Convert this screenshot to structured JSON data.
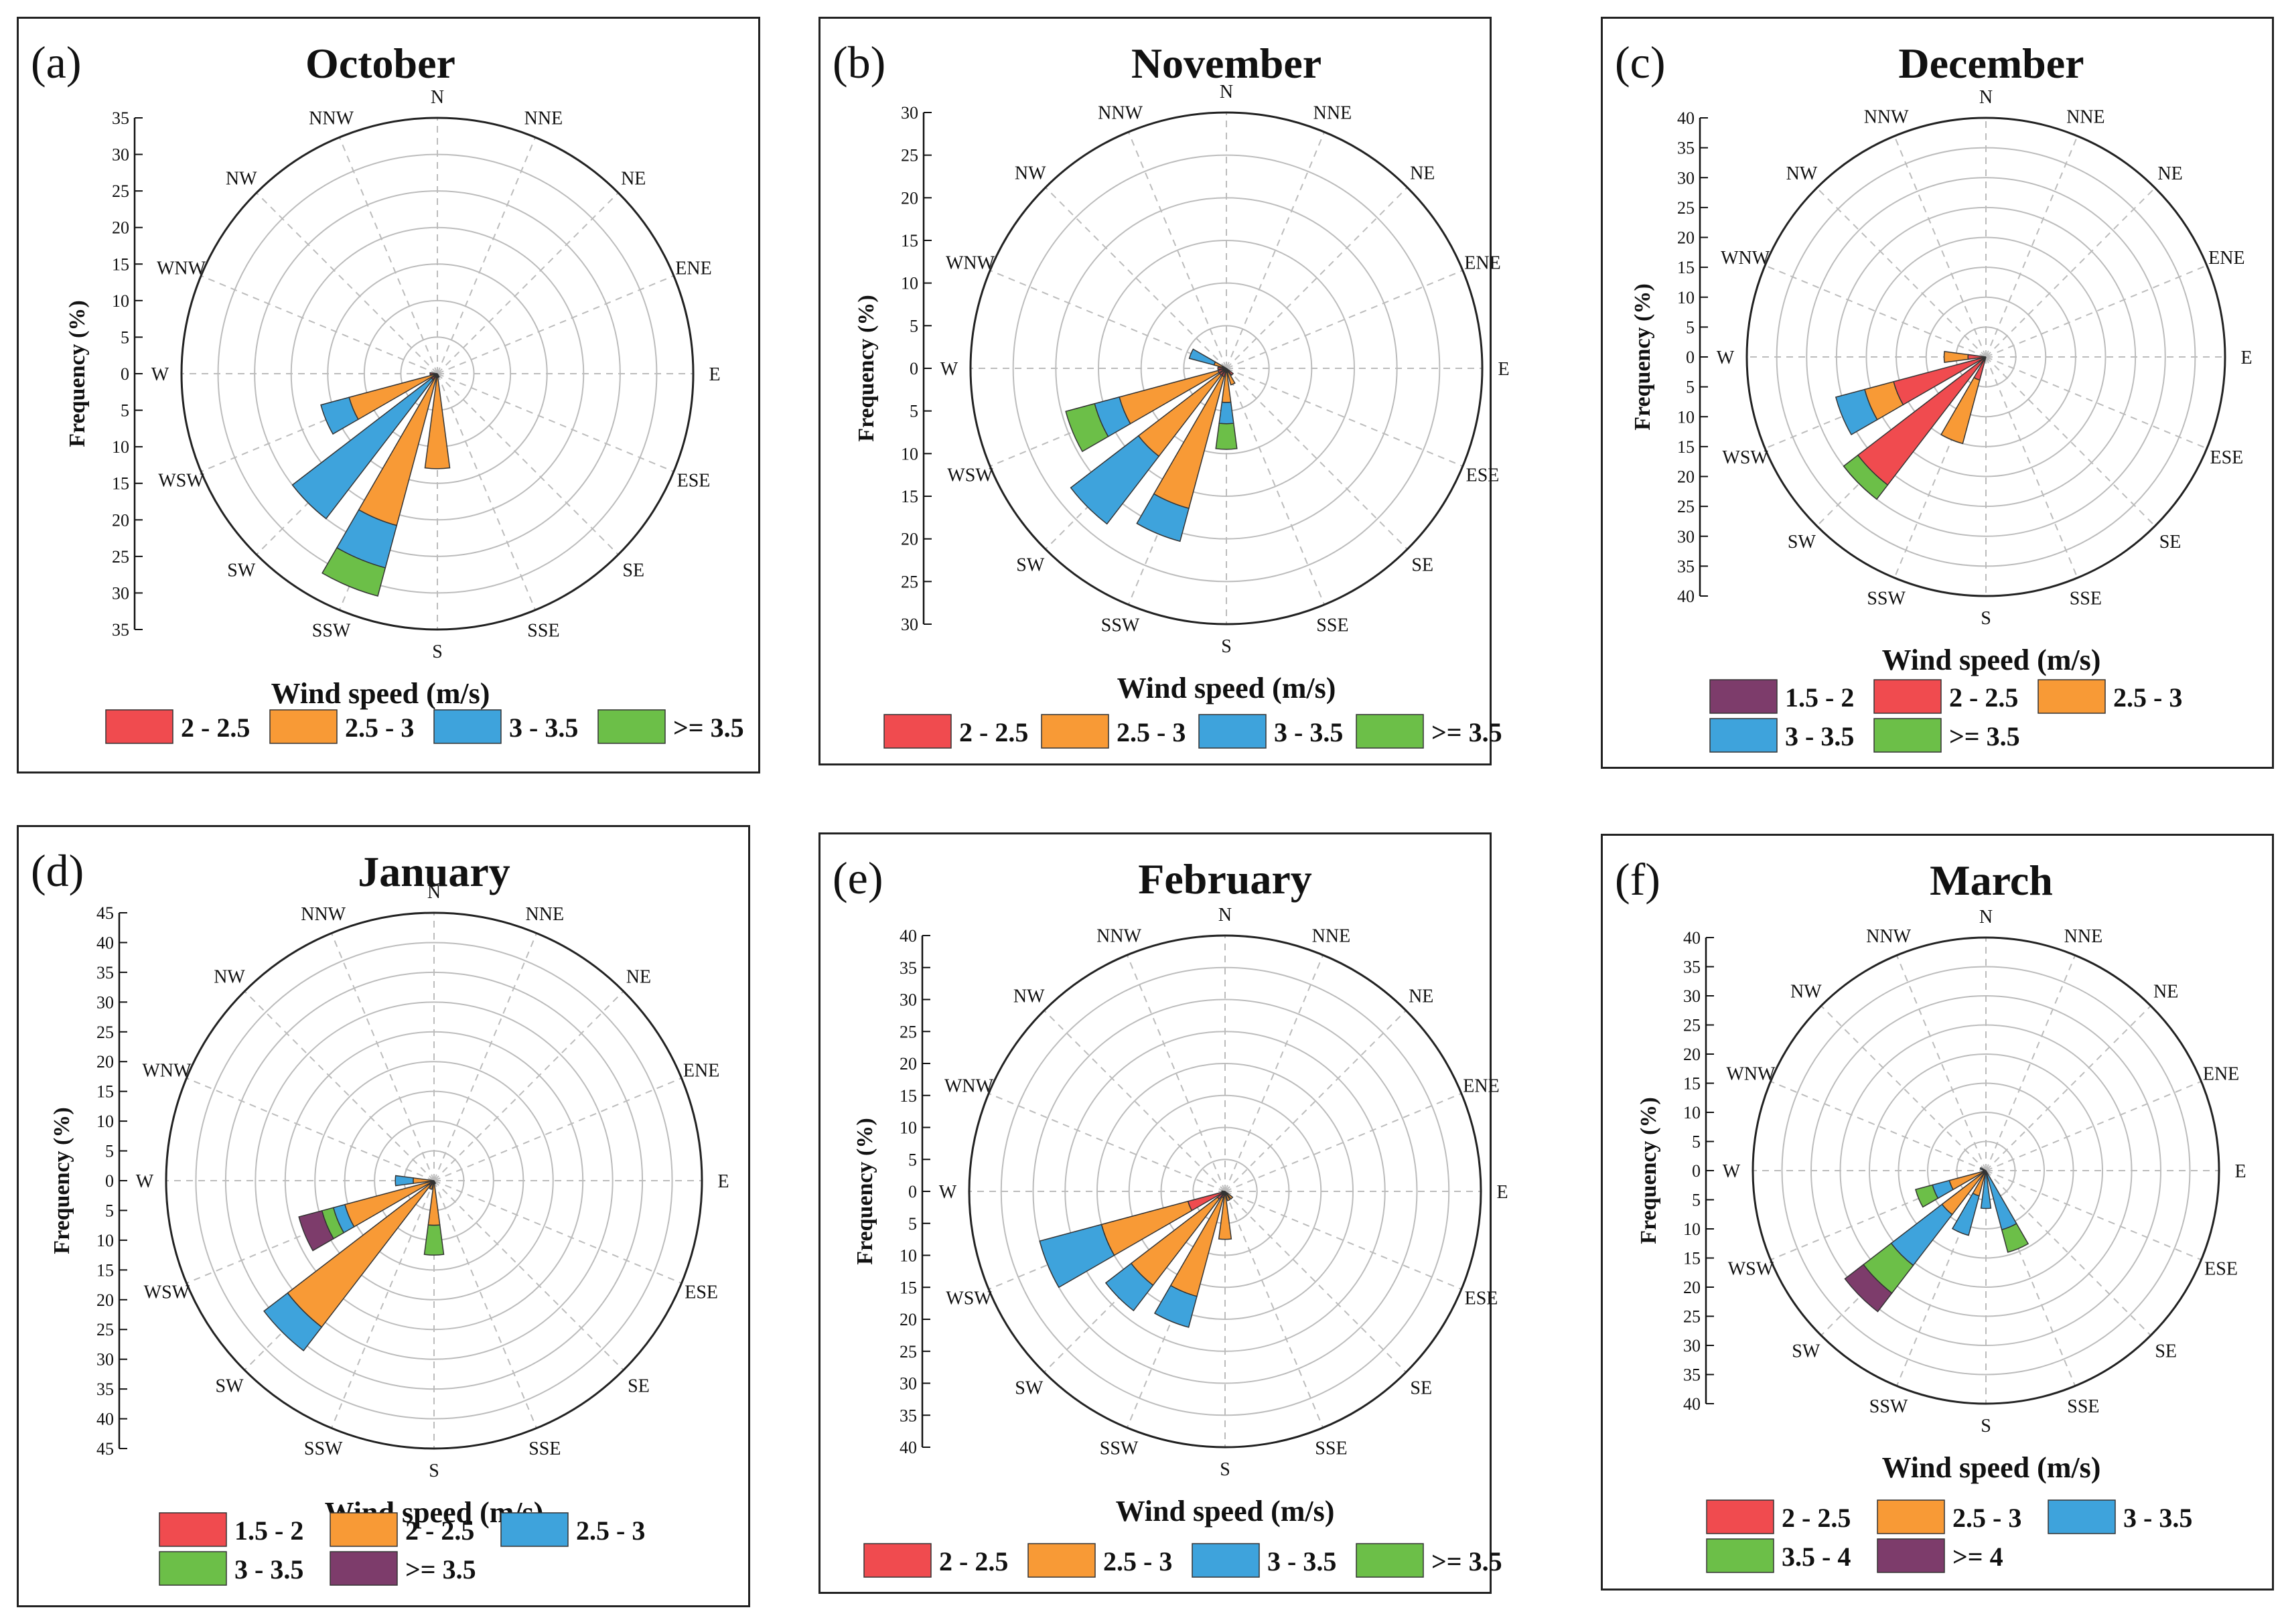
{
  "figure": {
    "direction_order": [
      "N",
      "NNE",
      "NE",
      "ENE",
      "E",
      "ESE",
      "SE",
      "SSE",
      "S",
      "SSW",
      "SW",
      "WSW",
      "W",
      "WNW",
      "NW",
      "NNW"
    ],
    "colors": {
      "red": "#f04b4f",
      "orange": "#f89a36",
      "blue": "#3ea3dc",
      "green": "#6cbf48",
      "purple": "#7d3c6b",
      "grid": "#bcbcbc",
      "frame": "#222222"
    }
  },
  "chart_data": [
    {
      "panel": "(a)",
      "title": "October",
      "type": "wind-rose",
      "xlabel": "Wind speed (m/s)",
      "ylabel": "Frequency (%)",
      "rmax": 35,
      "ticks": [
        0,
        5,
        10,
        15,
        20,
        25,
        30,
        35
      ],
      "directions": [
        "N",
        "NNE",
        "NE",
        "ENE",
        "E",
        "ESE",
        "SE",
        "SSE",
        "S",
        "SSW",
        "SW",
        "WSW",
        "W",
        "WNW",
        "NW",
        "NNW"
      ],
      "legend": [
        {
          "label": "2 - 2.5",
          "color": "#f04b4f"
        },
        {
          "label": "2.5 - 3",
          "color": "#f89a36"
        },
        {
          "label": "3 - 3.5",
          "color": "#3ea3dc"
        },
        {
          "label": ">= 3.5",
          "color": "#6cbf48"
        }
      ],
      "sectors": [
        {
          "dir": "S",
          "values": [
            0.5,
            12.5,
            0,
            0
          ]
        },
        {
          "dir": "SSW",
          "values": [
            0.5,
            21,
            6,
            4
          ]
        },
        {
          "dir": "SW",
          "values": [
            1,
            0,
            24,
            0
          ]
        },
        {
          "dir": "WSW",
          "values": [
            0.5,
            12,
            4,
            0
          ]
        },
        {
          "dir": "SSE",
          "values": [
            0.5,
            0,
            0,
            0
          ]
        },
        {
          "dir": "W",
          "values": [
            1,
            0,
            0,
            0
          ]
        }
      ]
    },
    {
      "panel": "(b)",
      "title": "November",
      "type": "wind-rose",
      "xlabel": "Wind speed (m/s)",
      "ylabel": "Frequency (%)",
      "rmax": 30,
      "ticks": [
        0,
        5,
        10,
        15,
        20,
        25,
        30
      ],
      "directions": [
        "N",
        "NNE",
        "NE",
        "ENE",
        "E",
        "ESE",
        "SE",
        "SSE",
        "S",
        "SSW",
        "SW",
        "WSW",
        "W",
        "WNW",
        "NW",
        "NNW"
      ],
      "legend": [
        {
          "label": "2 - 2.5",
          "color": "#f04b4f"
        },
        {
          "label": "2.5 - 3",
          "color": "#f89a36"
        },
        {
          "label": "3 - 3.5",
          "color": "#3ea3dc"
        },
        {
          "label": ">= 3.5",
          "color": "#6cbf48"
        }
      ],
      "sectors": [
        {
          "dir": "S",
          "values": [
            0.5,
            3.5,
            2.5,
            3
          ]
        },
        {
          "dir": "SSW",
          "values": [
            1,
            16,
            4,
            0
          ]
        },
        {
          "dir": "SW",
          "values": [
            1,
            12,
            10,
            0
          ]
        },
        {
          "dir": "WSW",
          "values": [
            1,
            12,
            3,
            3.5
          ]
        },
        {
          "dir": "WNW",
          "values": [
            0.5,
            1,
            3,
            0
          ]
        },
        {
          "dir": "SSE",
          "values": [
            0.5,
            1.5,
            0,
            0
          ]
        },
        {
          "dir": "SE",
          "values": [
            1,
            0,
            0,
            0
          ]
        },
        {
          "dir": "W",
          "values": [
            1,
            0,
            0,
            0
          ]
        }
      ]
    },
    {
      "panel": "(c)",
      "title": "December",
      "type": "wind-rose",
      "xlabel": "Wind speed (m/s)",
      "ylabel": "Frequency (%)",
      "rmax": 40,
      "ticks": [
        0,
        5,
        10,
        15,
        20,
        25,
        30,
        35,
        40
      ],
      "directions": [
        "N",
        "NNE",
        "NE",
        "ENE",
        "E",
        "ESE",
        "SE",
        "SSE",
        "S",
        "SSW",
        "SW",
        "WSW",
        "W",
        "WNW",
        "NW",
        "NNW"
      ],
      "legend": [
        {
          "label": "1.5 - 2",
          "color": "#7d3c6b"
        },
        {
          "label": "2 - 2.5",
          "color": "#f04b4f"
        },
        {
          "label": "2.5 - 3",
          "color": "#f89a36"
        },
        {
          "label": "3 - 3.5",
          "color": "#3ea3dc"
        },
        {
          "label": ">= 3.5",
          "color": "#6cbf48"
        }
      ],
      "sectors": [
        {
          "dir": "SW",
          "values": [
            0,
            27,
            0,
            0,
            3
          ]
        },
        {
          "dir": "WSW",
          "values": [
            0,
            16,
            5,
            5,
            0
          ]
        },
        {
          "dir": "SSW",
          "values": [
            0,
            4,
            11,
            0,
            0
          ]
        },
        {
          "dir": "W",
          "values": [
            0,
            3,
            4,
            0,
            0
          ]
        }
      ]
    },
    {
      "panel": "(d)",
      "title": "January",
      "type": "wind-rose",
      "xlabel": "Wind speed (m/s)",
      "ylabel": "Frequency (%)",
      "rmax": 45,
      "ticks": [
        0,
        5,
        10,
        15,
        20,
        25,
        30,
        35,
        40,
        45
      ],
      "directions": [
        "N",
        "NNE",
        "NE",
        "ENE",
        "E",
        "ESE",
        "SE",
        "SSE",
        "S",
        "SSW",
        "SW",
        "WSW",
        "W",
        "WNW",
        "NW",
        "NNW"
      ],
      "legend": [
        {
          "label": "1.5 - 2",
          "color": "#f04b4f"
        },
        {
          "label": "2 - 2.5",
          "color": "#f89a36"
        },
        {
          "label": "2.5 - 3",
          "color": "#3ea3dc"
        },
        {
          "label": "3 - 3.5",
          "color": "#6cbf48"
        },
        {
          "label": ">= 3.5",
          "color": "#7d3c6b"
        }
      ],
      "sectors": [
        {
          "dir": "SW",
          "values": [
            1,
            30,
            5,
            0,
            0
          ]
        },
        {
          "dir": "WSW",
          "values": [
            0.5,
            15,
            2,
            2,
            4
          ]
        },
        {
          "dir": "W",
          "values": [
            0.5,
            3,
            3,
            0,
            0
          ]
        },
        {
          "dir": "S",
          "values": [
            0.5,
            7,
            0,
            5,
            0
          ]
        },
        {
          "dir": "SSW",
          "values": [
            0.5,
            1,
            0,
            0,
            0
          ]
        },
        {
          "dir": "SSE",
          "values": [
            0.5,
            0,
            0,
            0,
            0
          ]
        }
      ]
    },
    {
      "panel": "(e)",
      "title": "February",
      "type": "wind-rose",
      "xlabel": "Wind speed (m/s)",
      "ylabel": "Frequency (%)",
      "rmax": 40,
      "ticks": [
        0,
        5,
        10,
        15,
        20,
        25,
        30,
        35,
        40
      ],
      "directions": [
        "N",
        "NNE",
        "NE",
        "ENE",
        "E",
        "ESE",
        "SE",
        "SSE",
        "S",
        "SSW",
        "SW",
        "WSW",
        "W",
        "WNW",
        "NW",
        "NNW"
      ],
      "legend": [
        {
          "label": "2 - 2.5",
          "color": "#f04b4f"
        },
        {
          "label": "2.5 - 3",
          "color": "#f89a36"
        },
        {
          "label": "3 - 3.5",
          "color": "#3ea3dc"
        },
        {
          "label": ">= 3.5",
          "color": "#6cbf48"
        }
      ],
      "sectors": [
        {
          "dir": "WSW",
          "values": [
            6,
            14,
            10,
            0
          ]
        },
        {
          "dir": "SW",
          "values": [
            1.5,
            17,
            5,
            0
          ]
        },
        {
          "dir": "SSW",
          "values": [
            1,
            16,
            5,
            0
          ]
        },
        {
          "dir": "S",
          "values": [
            0.5,
            7,
            0,
            0
          ]
        },
        {
          "dir": "SSE",
          "values": [
            0.5,
            1,
            0,
            0
          ]
        },
        {
          "dir": "SE",
          "values": [
            0.5,
            1,
            0,
            0
          ]
        },
        {
          "dir": "W",
          "values": [
            0.5,
            0,
            0,
            0
          ]
        }
      ]
    },
    {
      "panel": "(f)",
      "title": "March",
      "type": "wind-rose",
      "xlabel": "Wind speed (m/s)",
      "ylabel": "Frequency (%)",
      "rmax": 40,
      "ticks": [
        0,
        5,
        10,
        15,
        20,
        25,
        30,
        35,
        40
      ],
      "directions": [
        "N",
        "NNE",
        "NE",
        "ENE",
        "E",
        "ESE",
        "SE",
        "SSE",
        "S",
        "SSW",
        "SW",
        "WSW",
        "W",
        "WNW",
        "NW",
        "NNW"
      ],
      "legend": [
        {
          "label": "2 - 2.5",
          "color": "#f04b4f"
        },
        {
          "label": "2.5 - 3",
          "color": "#f89a36"
        },
        {
          "label": "3 - 3.5",
          "color": "#3ea3dc"
        },
        {
          "label": "3.5 - 4",
          "color": "#6cbf48"
        },
        {
          "label": ">= 4",
          "color": "#7d3c6b"
        }
      ],
      "sectors": [
        {
          "dir": "SW",
          "values": [
            0.5,
            9,
            11,
            6,
            4
          ]
        },
        {
          "dir": "WSW",
          "values": [
            0.5,
            6,
            3,
            3,
            0
          ]
        },
        {
          "dir": "SSW",
          "values": [
            0.5,
            4,
            7,
            0,
            0
          ]
        },
        {
          "dir": "S",
          "values": [
            0.5,
            0,
            6,
            0,
            0
          ]
        },
        {
          "dir": "SSE",
          "values": [
            0.5,
            0,
            10,
            4,
            0
          ]
        },
        {
          "dir": "W",
          "values": [
            0.5,
            0,
            0,
            0,
            0
          ]
        },
        {
          "dir": "WNW",
          "values": [
            0,
            0,
            1,
            0,
            0
          ]
        }
      ]
    }
  ]
}
